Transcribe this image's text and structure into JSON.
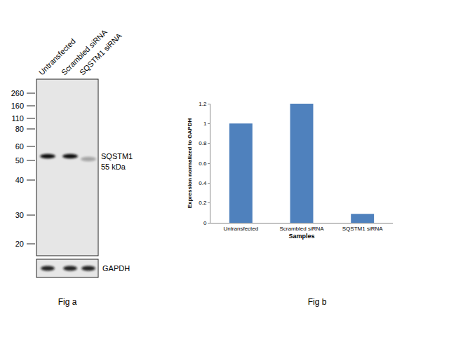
{
  "chart_data": {
    "type": "bar",
    "categories": [
      "Untransfected",
      "Scrambled siRNA",
      "SQSTM1 siRNA"
    ],
    "values": [
      1.0,
      1.2,
      0.09
    ],
    "color": "#4f81bd",
    "x_label": "Samples",
    "y_label": "Expression normalized to GAPDH",
    "ylim": [
      0,
      1.2
    ],
    "yticks": [
      0,
      0.2,
      0.4,
      0.6,
      0.8,
      1,
      1.2
    ],
    "grid": false,
    "caption": "Fig b"
  },
  "western_blot": {
    "lanes": [
      "Untransfected",
      "Scrambled siRNA",
      "SQSTM1 siRNA"
    ],
    "markers": [
      260,
      160,
      110,
      80,
      60,
      50,
      40,
      30,
      20
    ],
    "target": {
      "name": "SQSTM1",
      "size": "55 kDa",
      "band_intensity": [
        1.0,
        1.0,
        0.3
      ]
    },
    "loading_control": {
      "name": "GAPDH",
      "band_intensity": [
        0.9,
        0.9,
        0.9
      ]
    },
    "caption": "Fig a"
  }
}
